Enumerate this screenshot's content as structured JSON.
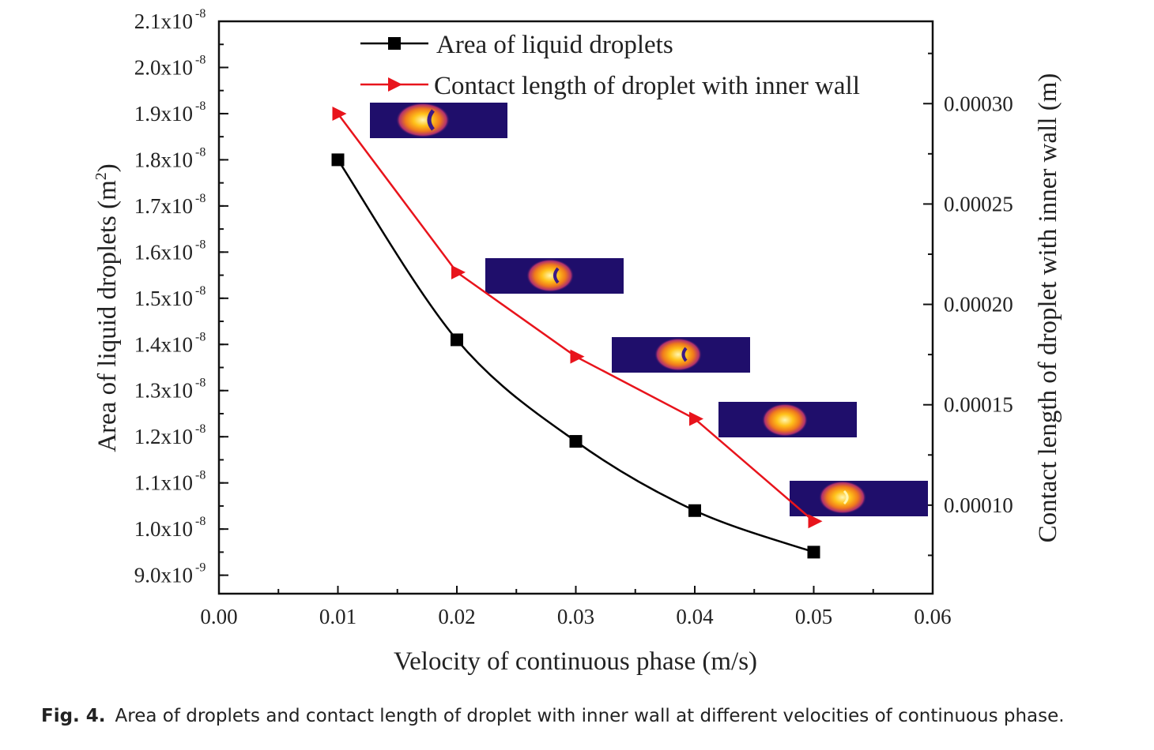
{
  "chart_data": {
    "type": "line",
    "xlabel": "Velocity of continuous phase (m/s)",
    "ylabel_left": "Area of liquid droplets (m",
    "ylabel_left_sup": "2",
    "ylabel_left_close": ")",
    "ylabel_right": "Contact length of droplet with inner wall (m)",
    "xlim": [
      0.0,
      0.06
    ],
    "xticks": [
      "0.00",
      "0.01",
      "0.02",
      "0.03",
      "0.04",
      "0.05",
      "0.06"
    ],
    "ylim_left": [
      8.6e-09,
      2.1e-08
    ],
    "yticks_left": [
      {
        "mant": "9.0x10",
        "exp": "-9"
      },
      {
        "mant": "1.0x10",
        "exp": "-8"
      },
      {
        "mant": "1.1x10",
        "exp": "-8"
      },
      {
        "mant": "1.2x10",
        "exp": "-8"
      },
      {
        "mant": "1.3x10",
        "exp": "-8"
      },
      {
        "mant": "1.4x10",
        "exp": "-8"
      },
      {
        "mant": "1.5x10",
        "exp": "-8"
      },
      {
        "mant": "1.6x10",
        "exp": "-8"
      },
      {
        "mant": "1.7x10",
        "exp": "-8"
      },
      {
        "mant": "1.8x10",
        "exp": "-8"
      },
      {
        "mant": "1.9x10",
        "exp": "-8"
      },
      {
        "mant": "2.0x10",
        "exp": "-8"
      },
      {
        "mant": "2.1x10",
        "exp": "-8"
      }
    ],
    "ylim_right": [
      5.59e-05,
      0.000341
    ],
    "yticks_right": [
      "0.00010",
      "0.00015",
      "0.00020",
      "0.00025",
      "0.00030"
    ],
    "legend_position": "top",
    "series": [
      {
        "name": "Area of liquid droplets",
        "axis": "left",
        "marker": "square",
        "color": "#000000",
        "smooth": true,
        "x": [
          0.01,
          0.02,
          0.03,
          0.04,
          0.05
        ],
        "y": [
          1.8e-08,
          1.41e-08,
          1.19e-08,
          1.04e-08,
          9.5e-09
        ]
      },
      {
        "name": "Contact length of droplet with inner wall",
        "axis": "right",
        "marker": "triangle-right",
        "color": "#e8141c",
        "smooth": false,
        "x": [
          0.01,
          0.02,
          0.03,
          0.04,
          0.05
        ],
        "y": [
          0.000295,
          0.000216,
          0.000174,
          0.000143,
          9.2e-05
        ]
      }
    ]
  },
  "caption": {
    "label": "Fig. 4.",
    "text": "Area of droplets and contact length of droplet with inner wall at different velocities of continuous phase."
  }
}
